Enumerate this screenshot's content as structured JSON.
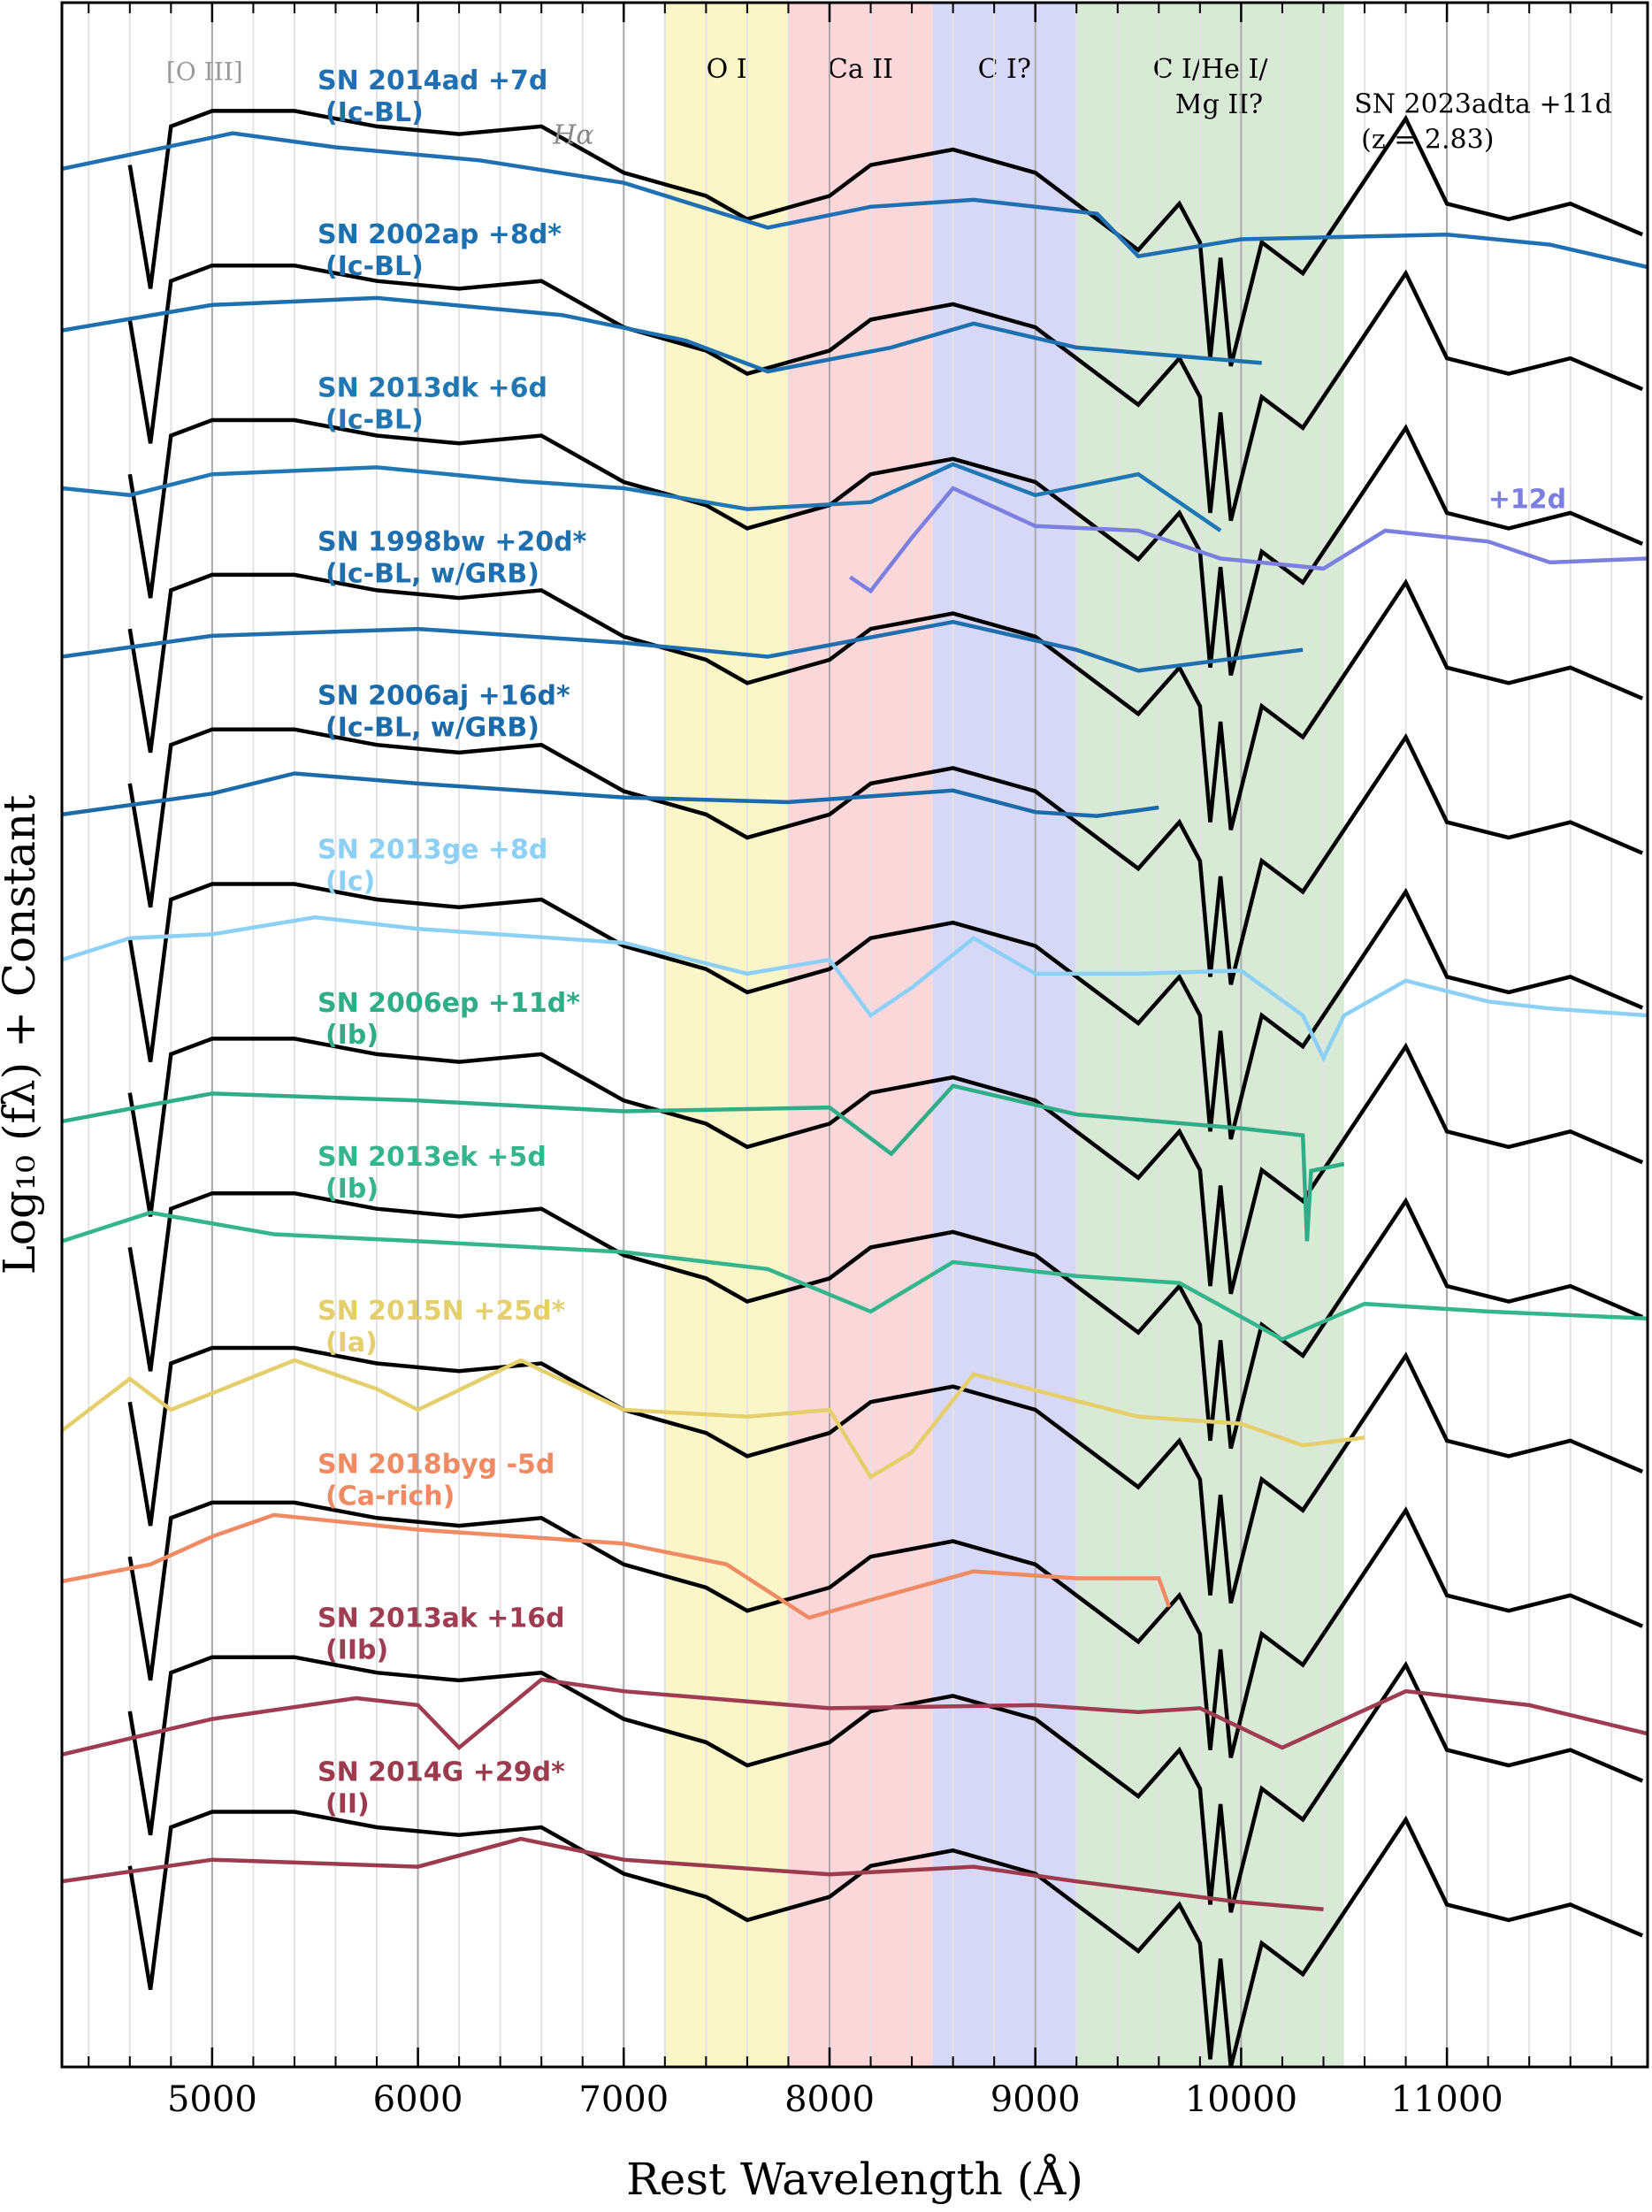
{
  "chart_data": {
    "type": "line",
    "xlabel": "Rest Wavelength (Å)",
    "ylabel": "Log₁₀ (fλ) + Constant",
    "xlim": [
      4270,
      11975
    ],
    "ylim": [
      -2.4,
      24.3
    ],
    "xticks": [
      5000,
      6000,
      7000,
      8000,
      9000,
      10000,
      11000
    ],
    "minor_grid_step": 200,
    "grid": true,
    "bands": [
      {
        "label": [
          "O I"
        ],
        "range": [
          7200,
          7800
        ],
        "color": "#fbf6c8"
      },
      {
        "label": [
          "Ca II"
        ],
        "range": [
          7800,
          8500
        ],
        "color": "#fcd7da"
      },
      {
        "label": [
          "C I?"
        ],
        "range": [
          8500,
          9200
        ],
        "color": "#d7d8f7"
      },
      {
        "label": [
          "C I/He I/",
          "Mg II?"
        ],
        "range": [
          9200,
          10500
        ],
        "color": "#d8e9d6"
      }
    ],
    "annotations": [
      "[O III]",
      "Hα"
    ],
    "target": {
      "name": "SN 2023adta +11d",
      "note": "(z = 2.83)",
      "color": "#000000",
      "x": [
        4600,
        4700,
        4800,
        5000,
        5400,
        5800,
        6200,
        6600,
        7000,
        7400,
        7600,
        8000,
        8200,
        8600,
        9000,
        9200,
        9500,
        9700,
        9800,
        9850,
        9900,
        9950,
        10100,
        10300,
        10500,
        10800,
        11000,
        11300,
        11600,
        11950
      ],
      "copies": [
        {
          "values": [
            22.2,
            20.6,
            22.7,
            22.9,
            22.9,
            22.7,
            22.6,
            22.7,
            22.1,
            21.8,
            21.5,
            21.8,
            22.2,
            22.4,
            22.1,
            21.7,
            21.1,
            21.7,
            21.2,
            19.7,
            21,
            19.6,
            21.2,
            20.8,
            21.6,
            22.8,
            21.7,
            21.5,
            21.7,
            21.3
          ]
        },
        {
          "values": [
            20.2,
            18.6,
            20.7,
            20.9,
            20.9,
            20.7,
            20.6,
            20.7,
            20.1,
            19.8,
            19.5,
            19.8,
            20.2,
            20.4,
            20.1,
            19.7,
            19.1,
            19.7,
            19.2,
            17.7,
            19,
            17.6,
            19.2,
            18.8,
            19.6,
            20.8,
            19.7,
            19.5,
            19.7,
            19.3
          ]
        },
        {
          "values": [
            18.2,
            16.6,
            18.7,
            18.9,
            18.9,
            18.7,
            18.6,
            18.7,
            18.1,
            17.8,
            17.5,
            17.8,
            18.2,
            18.4,
            18.1,
            17.7,
            17.1,
            17.7,
            17.2,
            15.7,
            17,
            15.6,
            17.2,
            16.8,
            17.6,
            18.8,
            17.7,
            17.5,
            17.7,
            17.3
          ]
        },
        {
          "values": [
            16.2,
            14.6,
            16.7,
            16.9,
            16.9,
            16.7,
            16.6,
            16.7,
            16.1,
            15.8,
            15.5,
            15.8,
            16.2,
            16.4,
            16.1,
            15.7,
            15.1,
            15.7,
            15.2,
            13.7,
            15,
            13.6,
            15.2,
            14.8,
            15.6,
            16.8,
            15.7,
            15.5,
            15.7,
            15.3
          ]
        },
        {
          "values": [
            14.2,
            12.6,
            14.7,
            14.9,
            14.9,
            14.7,
            14.6,
            14.7,
            14.1,
            13.8,
            13.5,
            13.8,
            14.2,
            14.4,
            14.1,
            13.7,
            13.1,
            13.7,
            13.2,
            11.7,
            13,
            11.6,
            13.2,
            12.8,
            13.6,
            14.8,
            13.7,
            13.5,
            13.7,
            13.3
          ]
        },
        {
          "values": [
            12.2,
            10.6,
            12.7,
            12.9,
            12.9,
            12.7,
            12.6,
            12.7,
            12.1,
            11.8,
            11.5,
            11.8,
            12.2,
            12.4,
            12.1,
            11.7,
            11.1,
            11.7,
            11.2,
            9.7,
            11,
            9.6,
            11.2,
            10.8,
            11.6,
            12.8,
            11.7,
            11.5,
            11.7,
            11.3
          ]
        },
        {
          "values": [
            10.2,
            8.6,
            10.7,
            10.9,
            10.9,
            10.7,
            10.6,
            10.7,
            10.1,
            9.8,
            9.5,
            9.8,
            10.2,
            10.4,
            10.1,
            9.7,
            9.1,
            9.7,
            9.2,
            7.7,
            9,
            7.6,
            9.2,
            8.8,
            9.6,
            10.8,
            9.7,
            9.5,
            9.7,
            9.3
          ]
        },
        {
          "values": [
            8.2,
            6.6,
            8.7,
            8.9,
            8.9,
            8.7,
            8.6,
            8.7,
            8.1,
            7.8,
            7.5,
            7.8,
            8.2,
            8.4,
            8.1,
            7.7,
            7.1,
            7.7,
            7.2,
            5.7,
            7,
            5.6,
            7.2,
            6.8,
            7.6,
            8.8,
            7.7,
            7.5,
            7.7,
            7.3
          ]
        },
        {
          "values": [
            6.2,
            4.6,
            6.7,
            6.9,
            6.9,
            6.7,
            6.6,
            6.7,
            6.1,
            5.8,
            5.5,
            5.8,
            6.2,
            6.4,
            6.1,
            5.7,
            5.1,
            5.7,
            5.2,
            3.7,
            5,
            3.6,
            5.2,
            4.8,
            5.6,
            6.8,
            5.7,
            5.5,
            5.7,
            5.3
          ]
        },
        {
          "values": [
            4.2,
            2.6,
            4.7,
            4.9,
            4.9,
            4.7,
            4.6,
            4.7,
            4.1,
            3.8,
            3.5,
            3.8,
            4.2,
            4.4,
            4.1,
            3.7,
            3.1,
            3.7,
            3.2,
            1.7,
            3,
            1.6,
            3.2,
            2.8,
            3.6,
            4.8,
            3.7,
            3.5,
            3.7,
            3.3
          ]
        },
        {
          "values": [
            2.2,
            0.6,
            2.7,
            2.9,
            2.9,
            2.7,
            2.6,
            2.7,
            2.1,
            1.8,
            1.5,
            1.8,
            2.2,
            2.4,
            2.1,
            1.7,
            1.1,
            1.7,
            1.2,
            -0.3,
            1,
            -0.4,
            1.2,
            0.8,
            1.6,
            2.8,
            1.7,
            1.5,
            1.7,
            1.3
          ]
        },
        {
          "values": [
            0.2,
            -1.4,
            0.7,
            0.9,
            0.9,
            0.7,
            0.6,
            0.7,
            0.1,
            -0.2,
            -0.5,
            -0.2,
            0.2,
            0.4,
            0.1,
            -0.3,
            -0.9,
            -0.3,
            -0.8,
            -2.3,
            -1,
            -2.4,
            -0.8,
            -1.2,
            -0.4,
            0.8,
            -0.3,
            -0.5,
            -0.3,
            -0.7
          ]
        }
      ]
    },
    "series": [
      {
        "name": "SN 2014ad +7d",
        "subtype": "(Ic-BL)",
        "color": "#1f6fb2",
        "x": [
          4270,
          5100,
          5600,
          6300,
          7000,
          7700,
          8200,
          8700,
          9300,
          9500,
          10000,
          11000,
          11500,
          11975
        ],
        "values": [
          22.15,
          22.61,
          22.43,
          22.26,
          21.97,
          21.39,
          21.66,
          21.75,
          21.57,
          21.02,
          21.24,
          21.3,
          21.17,
          20.88
        ]
      },
      {
        "name": "SN 2002ap +8d*",
        "subtype": "(Ic-BL)",
        "color": "#1c70b0",
        "x": [
          4270,
          5000,
          5800,
          6700,
          7300,
          7700,
          8300,
          8700,
          9200,
          9600,
          10100
        ],
        "values": [
          20.06,
          20.39,
          20.48,
          20.26,
          19.93,
          19.53,
          19.84,
          20.15,
          19.84,
          19.75,
          19.64
        ]
      },
      {
        "name": "SN 2013dk +6d",
        "subtype": "(Ic-BL)",
        "color": "#2077b4",
        "x": [
          4270,
          4600,
          5000,
          5800,
          6500,
          7000,
          7600,
          8200,
          8600,
          9000,
          9500,
          9900
        ],
        "values": [
          18.02,
          17.93,
          18.2,
          18.29,
          18.11,
          18.02,
          17.75,
          17.84,
          18.33,
          17.93,
          18.2,
          17.47
        ]
      },
      {
        "name": "+12d",
        "color": "#7b7fe0",
        "x": [
          8100,
          8200,
          8400,
          8600,
          9000,
          9500,
          9900,
          10400,
          10700,
          11200,
          11500,
          11975
        ],
        "values": [
          16.87,
          16.69,
          17.38,
          18.02,
          17.53,
          17.47,
          17.11,
          16.98,
          17.47,
          17.33,
          17.06,
          17.11
        ]
      },
      {
        "name": "SN 1998bw +20d*",
        "subtype": "(Ic-BL, w/GRB)",
        "color": "#1f6fae",
        "x": [
          4270,
          5000,
          6000,
          7000,
          7700,
          8600,
          9200,
          9500,
          10300
        ],
        "values": [
          15.84,
          16.11,
          16.2,
          16.02,
          15.84,
          16.29,
          15.93,
          15.66,
          15.93
        ]
      },
      {
        "name": "SN 2006aj +16d*",
        "subtype": "(Ic-BL, w/GRB)",
        "color": "#1b6aa9",
        "x": [
          4270,
          5000,
          5400,
          6000,
          7000,
          7800,
          8600,
          9000,
          9300,
          9600
        ],
        "values": [
          13.8,
          14.07,
          14.33,
          14.2,
          14.02,
          13.96,
          14.11,
          13.83,
          13.78,
          13.89
        ]
      },
      {
        "name": "SN 2013ge +8d",
        "subtype": "(Ic)",
        "color": "#8dd0f5",
        "x": [
          4270,
          4600,
          5000,
          5500,
          6000,
          7000,
          7600,
          8000,
          8200,
          8400,
          8700,
          9000,
          9500,
          10000,
          10300,
          10400,
          10500,
          10800,
          11200,
          11500,
          11975
        ],
        "values": [
          11.92,
          12.2,
          12.25,
          12.47,
          12.32,
          12.14,
          11.74,
          11.92,
          11.2,
          11.56,
          12.2,
          11.74,
          11.74,
          11.78,
          11.2,
          10.65,
          11.2,
          11.65,
          11.38,
          11.29,
          11.2
        ]
      },
      {
        "name": "SN 2006ep +11d*",
        "subtype": "(Ib)",
        "color": "#2fad86",
        "x": [
          4270,
          5000,
          6000,
          7000,
          8000,
          8300,
          8600,
          9200,
          10000,
          10300,
          10320,
          10340,
          10500
        ],
        "values": [
          9.83,
          10.19,
          10.1,
          9.96,
          10.01,
          9.41,
          10.29,
          9.92,
          9.74,
          9.65,
          8.28,
          9.19,
          9.28
        ]
      },
      {
        "name": "SN 2013ek +5d",
        "subtype": "(Ib)",
        "color": "#35b58c",
        "x": [
          4270,
          4700,
          5300,
          6000,
          7000,
          7700,
          8200,
          8600,
          9200,
          9700,
          10200,
          10600,
          11200,
          11975
        ],
        "values": [
          8.28,
          8.65,
          8.37,
          8.28,
          8.14,
          7.92,
          7.37,
          8.01,
          7.83,
          7.74,
          7.01,
          7.47,
          7.37,
          7.28
        ]
      },
      {
        "name": "SN 2015N +25d*",
        "subtype": "(Ia)",
        "color": "#e5cf6c",
        "x": [
          4270,
          4600,
          4800,
          5400,
          5800,
          6000,
          6500,
          7000,
          7600,
          8000,
          8200,
          8400,
          8700,
          9500,
          10000,
          10300,
          10600
        ],
        "values": [
          5.83,
          6.5,
          6.1,
          6.74,
          6.37,
          6.1,
          6.74,
          6.1,
          6.01,
          6.1,
          5.23,
          5.55,
          6.56,
          6.01,
          5.92,
          5.64,
          5.74
        ]
      },
      {
        "name": "SN 2018byg -5d",
        "subtype": "(Ca-rich)",
        "color": "#ef8a62",
        "x": [
          4270,
          4700,
          5000,
          5300,
          6000,
          7000,
          7500,
          7900,
          8200,
          8700,
          9200,
          9600,
          9650
        ],
        "values": [
          3.88,
          4.1,
          4.46,
          4.74,
          4.55,
          4.37,
          4.1,
          3.41,
          3.64,
          4.01,
          3.92,
          3.92,
          3.55
        ]
      },
      {
        "name": "SN 2013ak +16d",
        "subtype": "(IIb)",
        "color": "#a03c52",
        "x": [
          4270,
          5000,
          5700,
          6000,
          6200,
          6600,
          7000,
          8000,
          9000,
          9500,
          9800,
          10200,
          10800,
          11400,
          11975
        ],
        "values": [
          1.64,
          2.1,
          2.37,
          2.28,
          1.73,
          2.61,
          2.46,
          2.24,
          2.28,
          2.19,
          2.24,
          1.73,
          2.46,
          2.28,
          1.91
        ]
      },
      {
        "name": "SN 2014G +29d*",
        "subtype": "(II)",
        "color": "#9c3a4e",
        "x": [
          4270,
          5000,
          6000,
          6500,
          7000,
          8000,
          8700,
          9200,
          10000,
          10400
        ],
        "values": [
          0.0,
          0.28,
          0.19,
          0.55,
          0.28,
          0.09,
          0.19,
          0.0,
          -0.27,
          -0.36
        ]
      }
    ]
  }
}
